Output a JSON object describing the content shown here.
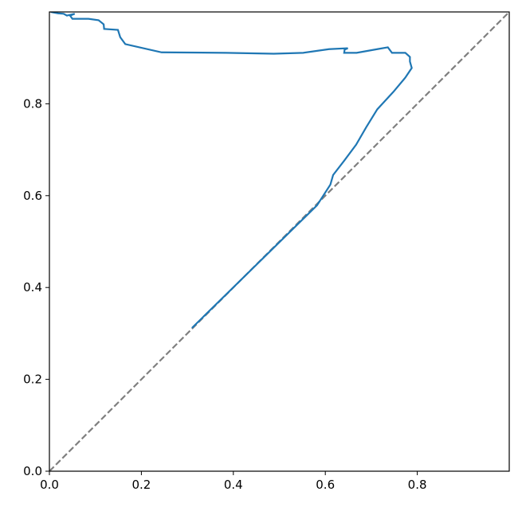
{
  "chart_data": {
    "type": "line",
    "xlim": [
      0,
      1
    ],
    "ylim": [
      0,
      1
    ],
    "xticks": [
      {
        "value": 0,
        "label": "0.0"
      },
      0.2,
      0.4,
      0.6,
      0.8
    ],
    "yticks": [
      {
        "value": 0,
        "label": "0.0"
      },
      0.2,
      0.4,
      0.6,
      0.8
    ],
    "series": [
      {
        "color": "#808080",
        "linestyle": "dashed",
        "x": [
          0,
          1
        ],
        "values": [
          0,
          1
        ]
      },
      {
        "color": "#1f77b4",
        "linestyle": "solid",
        "x": [
          0.31,
          0.582,
          0.611,
          0.617,
          0.641,
          0.667,
          0.689,
          0.713,
          0.748,
          0.774,
          0.788,
          0.784,
          0.784,
          0.774,
          0.745,
          0.736,
          0.713,
          0.668,
          0.641,
          0.642,
          0.649,
          0.608,
          0.552,
          0.488,
          0.384,
          0.244,
          0.165,
          0.154,
          0.149,
          0.119,
          0.118,
          0.107,
          0.085,
          0.05,
          0.045,
          0.055,
          0.038,
          0.031,
          0.019,
          0.003
        ],
        "values": [
          0.312,
          0.579,
          0.624,
          0.645,
          0.676,
          0.711,
          0.749,
          0.788,
          0.826,
          0.857,
          0.878,
          0.892,
          0.902,
          0.911,
          0.911,
          0.923,
          0.919,
          0.911,
          0.911,
          0.918,
          0.921,
          0.919,
          0.911,
          0.909,
          0.911,
          0.912,
          0.93,
          0.945,
          0.961,
          0.963,
          0.973,
          0.982,
          0.985,
          0.985,
          0.992,
          0.996,
          0.992,
          0.996,
          0.997,
          1.0
        ]
      }
    ]
  }
}
